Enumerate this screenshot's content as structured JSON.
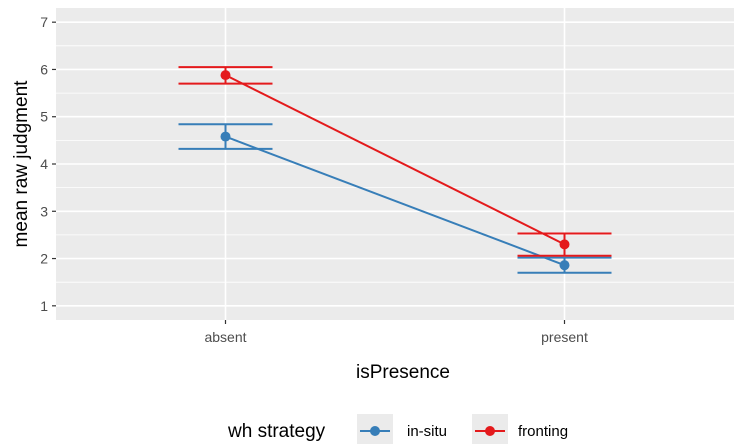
{
  "chart_data": {
    "type": "line",
    "title": "",
    "xlabel": "isPresence",
    "ylabel": "mean raw judgment",
    "categories": [
      "absent",
      "present"
    ],
    "ylim": [
      0.7,
      7.3
    ],
    "yticks": [
      1,
      2,
      3,
      4,
      5,
      6,
      7
    ],
    "grid": true,
    "legend": {
      "title": "wh strategy",
      "position": "bottom"
    },
    "series": [
      {
        "name": "in-situ",
        "color": "#377eb8",
        "values": [
          4.58,
          1.86
        ],
        "lower": [
          4.32,
          1.7
        ],
        "upper": [
          4.84,
          2.02
        ]
      },
      {
        "name": "fronting",
        "color": "#e41a1c",
        "values": [
          5.88,
          2.3
        ],
        "lower": [
          5.7,
          2.06
        ],
        "upper": [
          6.05,
          2.53
        ]
      }
    ]
  }
}
